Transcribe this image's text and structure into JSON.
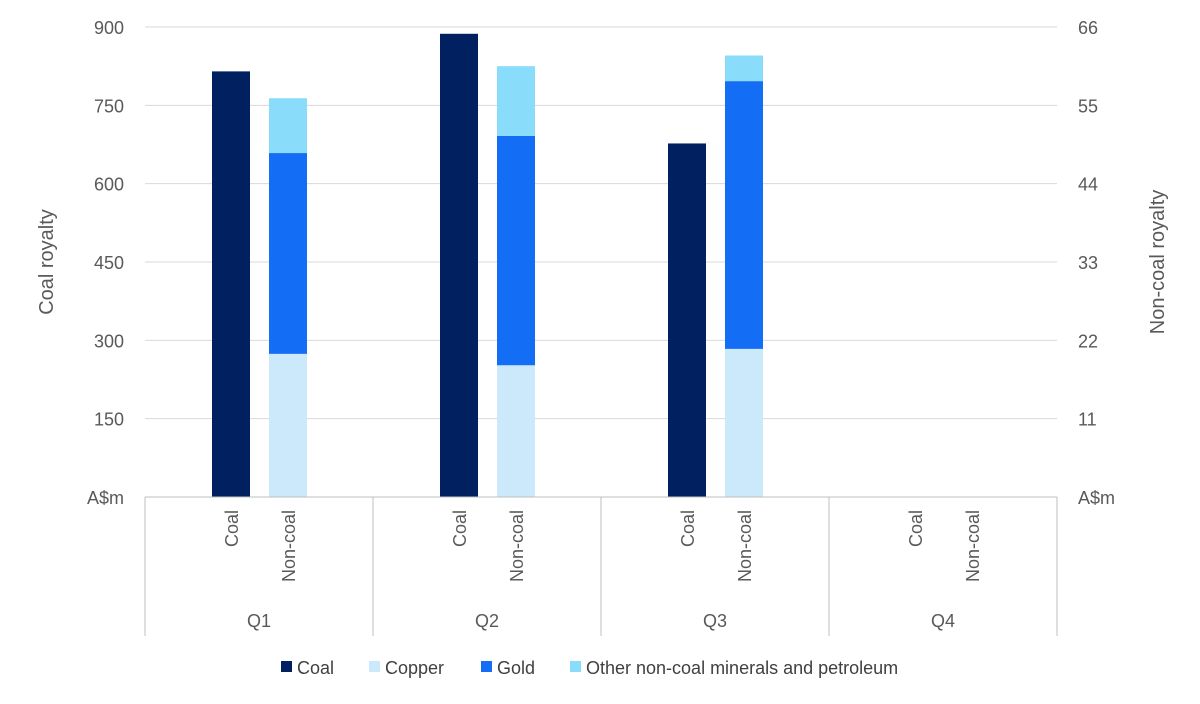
{
  "chart_data": {
    "type": "bar",
    "stacked": true,
    "grid": true,
    "legend_position": "bottom",
    "ylabel_left": "Coal royalty",
    "ylabel_right": "Non-coal royalty",
    "y_left_unit_label": "A$m",
    "y_right_unit_label": "A$m",
    "ylim_left": [
      0,
      900
    ],
    "ylim_right": [
      0,
      66
    ],
    "yticks_left": [
      "150",
      "300",
      "450",
      "600",
      "750",
      "900"
    ],
    "yticks_right": [
      "11",
      "22",
      "33",
      "44",
      "55",
      "66"
    ],
    "groups": [
      "Q1",
      "Q2",
      "Q3",
      "Q4"
    ],
    "subcategories": [
      "Coal",
      "Non-coal"
    ],
    "series": [
      {
        "name": "Coal",
        "axis": "left",
        "subcategory": "Coal",
        "color": "#002060",
        "values": [
          815,
          887,
          677,
          null
        ]
      },
      {
        "name": "Copper",
        "axis": "right",
        "subcategory": "Non-coal",
        "color": "#CCE9FB",
        "values": [
          20.1,
          18.5,
          20.8,
          null
        ]
      },
      {
        "name": "Gold",
        "axis": "right",
        "subcategory": "Non-coal",
        "color": "#146EF5",
        "values": [
          28.2,
          32.2,
          37.6,
          null
        ]
      },
      {
        "name": "Other non-coal minerals and petroleum",
        "axis": "right",
        "subcategory": "Non-coal",
        "color": "#8ADCFB",
        "values": [
          7.7,
          9.8,
          3.6,
          null
        ]
      }
    ]
  }
}
